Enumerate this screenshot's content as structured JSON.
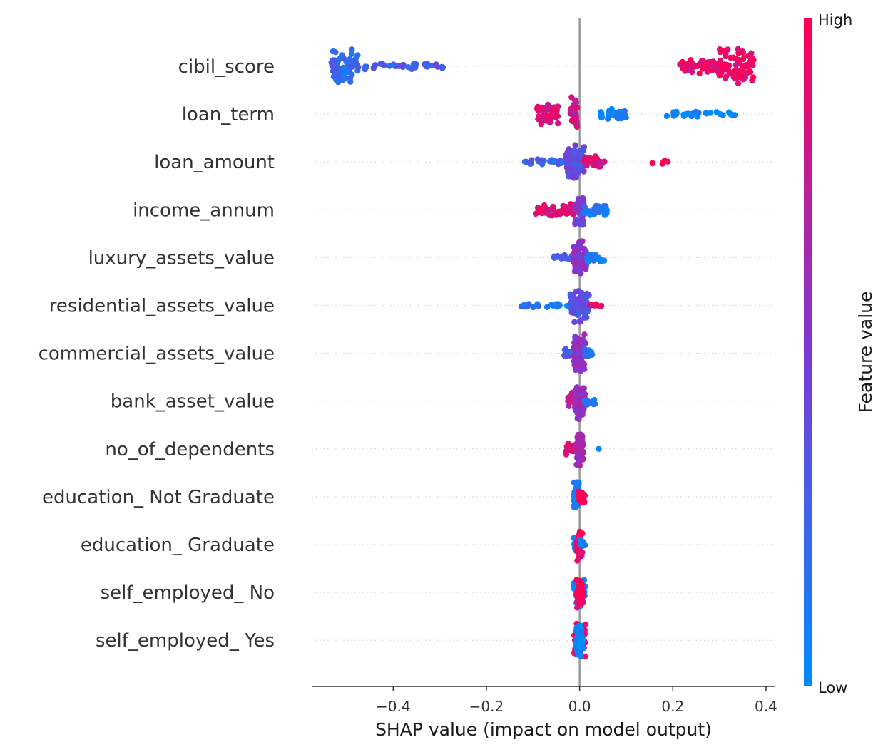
{
  "chart_data": {
    "type": "scatter",
    "subtype": "shap-beeswarm",
    "title": "",
    "xlabel": "SHAP value (impact on model output)",
    "xlim": [
      -0.575,
      0.42
    ],
    "xticks": [
      -0.4,
      -0.2,
      0.0,
      0.2,
      0.4
    ],
    "xtick_labels": [
      "−0.4",
      "−0.2",
      "0.0",
      "0.2",
      "0.4"
    ],
    "zero_line": true,
    "grid": false,
    "colorbar": {
      "label": "Feature value",
      "high_label": "High",
      "low_label": "Low",
      "low_color": "#008bfb",
      "mid_color": "#7c3ad6",
      "high_color": "#ff0052"
    },
    "features": [
      {
        "name": "cibil_score",
        "clusters": [
          {
            "min": -0.535,
            "max": -0.475,
            "color": 0.2,
            "count": 70,
            "spread": 1.0
          },
          {
            "min": -0.48,
            "max": -0.29,
            "color": 0.3,
            "count": 35,
            "spread": 0.18
          },
          {
            "min": 0.215,
            "max": 0.3,
            "color": 0.9,
            "count": 60,
            "spread": 0.4
          },
          {
            "min": 0.3,
            "max": 0.375,
            "color": 0.92,
            "count": 80,
            "spread": 1.0
          }
        ]
      },
      {
        "name": "loan_term",
        "clusters": [
          {
            "min": -0.095,
            "max": -0.045,
            "color": 0.85,
            "count": 45,
            "spread": 0.55
          },
          {
            "min": -0.02,
            "max": -0.005,
            "color": 0.8,
            "count": 40,
            "spread": 0.9
          },
          {
            "min": 0.04,
            "max": 0.1,
            "color": 0.05,
            "count": 35,
            "spread": 0.35
          },
          {
            "min": 0.18,
            "max": 0.34,
            "color": 0.05,
            "count": 30,
            "spread": 0.15
          }
        ]
      },
      {
        "name": "loan_amount",
        "clusters": [
          {
            "min": -0.12,
            "max": -0.03,
            "color": 0.25,
            "count": 25,
            "spread": 0.15
          },
          {
            "min": -0.03,
            "max": 0.01,
            "color": 0.4,
            "count": 90,
            "spread": 0.9
          },
          {
            "min": 0.01,
            "max": 0.055,
            "color": 0.85,
            "count": 35,
            "spread": 0.3
          },
          {
            "min": 0.15,
            "max": 0.21,
            "color": 0.98,
            "count": 5,
            "spread": 0.1
          }
        ]
      },
      {
        "name": "income_annum",
        "clusters": [
          {
            "min": -0.095,
            "max": -0.01,
            "color": 0.88,
            "count": 60,
            "spread": 0.35
          },
          {
            "min": -0.01,
            "max": 0.01,
            "color": 0.5,
            "count": 60,
            "spread": 0.95
          },
          {
            "min": 0.01,
            "max": 0.06,
            "color": 0.1,
            "count": 30,
            "spread": 0.3
          }
        ]
      },
      {
        "name": "luxury_assets_value",
        "clusters": [
          {
            "min": -0.055,
            "max": -0.015,
            "color": 0.3,
            "count": 15,
            "spread": 0.2
          },
          {
            "min": -0.015,
            "max": 0.015,
            "color": 0.55,
            "count": 80,
            "spread": 0.95
          },
          {
            "min": 0.015,
            "max": 0.055,
            "color": 0.1,
            "count": 20,
            "spread": 0.25
          }
        ]
      },
      {
        "name": "residential_assets_value",
        "clusters": [
          {
            "min": -0.125,
            "max": -0.02,
            "color": 0.1,
            "count": 20,
            "spread": 0.12
          },
          {
            "min": -0.02,
            "max": 0.02,
            "color": 0.35,
            "count": 80,
            "spread": 0.95
          },
          {
            "min": 0.02,
            "max": 0.055,
            "color": 0.9,
            "count": 8,
            "spread": 0.15
          }
        ]
      },
      {
        "name": "commercial_assets_value",
        "clusters": [
          {
            "min": -0.035,
            "max": -0.01,
            "color": 0.3,
            "count": 15,
            "spread": 0.35
          },
          {
            "min": -0.012,
            "max": 0.012,
            "color": 0.6,
            "count": 90,
            "spread": 1.0
          },
          {
            "min": 0.01,
            "max": 0.028,
            "color": 0.2,
            "count": 15,
            "spread": 0.35
          }
        ]
      },
      {
        "name": "bank_asset_value",
        "clusters": [
          {
            "min": -0.025,
            "max": -0.005,
            "color": 0.75,
            "count": 30,
            "spread": 0.6
          },
          {
            "min": -0.01,
            "max": 0.012,
            "color": 0.6,
            "count": 80,
            "spread": 1.0
          },
          {
            "min": 0.01,
            "max": 0.035,
            "color": 0.15,
            "count": 12,
            "spread": 0.3
          }
        ]
      },
      {
        "name": "no_of_dependents",
        "clusters": [
          {
            "min": -0.03,
            "max": -0.005,
            "color": 0.85,
            "count": 20,
            "spread": 0.35
          },
          {
            "min": -0.008,
            "max": 0.008,
            "color": 0.65,
            "count": 70,
            "spread": 1.0
          },
          {
            "min": 0.04,
            "max": 0.045,
            "color": 0.05,
            "count": 1,
            "spread": 0.0
          }
        ]
      },
      {
        "name": "education_ Not Graduate",
        "clusters": [
          {
            "min": -0.012,
            "max": 0.0,
            "color": 0.05,
            "count": 40,
            "spread": 0.9
          },
          {
            "min": -0.003,
            "max": 0.012,
            "color": 0.95,
            "count": 25,
            "spread": 0.35
          }
        ]
      },
      {
        "name": "education_ Graduate",
        "clusters": [
          {
            "min": -0.012,
            "max": 0.0,
            "color": 0.05,
            "count": 20,
            "spread": 0.4
          },
          {
            "min": -0.006,
            "max": 0.006,
            "color": 0.95,
            "count": 40,
            "spread": 0.9
          },
          {
            "min": 0.0,
            "max": 0.012,
            "color": 0.05,
            "count": 10,
            "spread": 0.3
          }
        ]
      },
      {
        "name": "self_employed_ No",
        "clusters": [
          {
            "min": -0.012,
            "max": 0.012,
            "color": 0.05,
            "count": 35,
            "spread": 0.85
          },
          {
            "min": -0.008,
            "max": 0.008,
            "color": 0.95,
            "count": 30,
            "spread": 0.85
          }
        ]
      },
      {
        "name": "self_employed_ Yes",
        "clusters": [
          {
            "min": -0.012,
            "max": 0.012,
            "color": 0.95,
            "count": 35,
            "spread": 0.9
          },
          {
            "min": -0.008,
            "max": 0.008,
            "color": 0.05,
            "count": 35,
            "spread": 0.9
          }
        ]
      }
    ]
  }
}
